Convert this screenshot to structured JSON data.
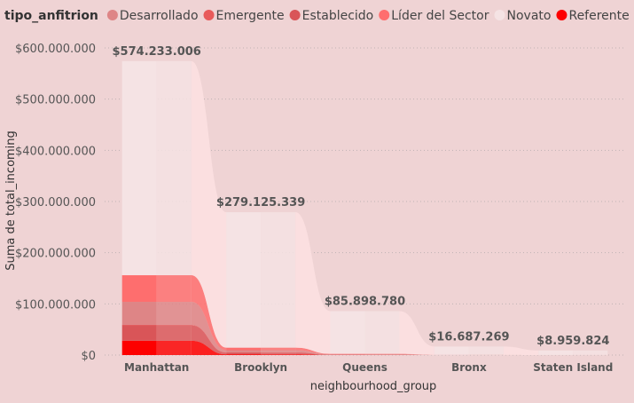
{
  "chart_data": {
    "type": "bar",
    "legend_title": "tipo_anfitrion",
    "legend_position": "top-left",
    "xlabel": "neighbourhood_group",
    "ylabel": "Suma de total_incoming",
    "ylim": [
      0,
      600000000
    ],
    "yticks": [
      0,
      100000000,
      200000000,
      300000000,
      400000000,
      500000000,
      600000000
    ],
    "ytick_labels": [
      "$0",
      "$100.000.000",
      "$200.000.000",
      "$300.000.000",
      "$400.000.000",
      "$500.000.000",
      "$600.000.000"
    ],
    "grid": true,
    "categories": [
      "Manhattan",
      "Brooklyn",
      "Queens",
      "Bronx",
      "Staten Island"
    ],
    "totals": [
      574233006,
      279125339,
      85898780,
      16687269,
      8959824
    ],
    "total_labels": [
      "$574.233.006",
      "$279.125.339",
      "$85.898.780",
      "$16.687.269",
      "$8.959.824"
    ],
    "series": [
      {
        "name": "Referente",
        "color": "#fd0000",
        "values": [
          28000000,
          1500000,
          200000,
          30000,
          10000
        ]
      },
      {
        "name": "Establecido",
        "color": "#d95558",
        "values": [
          30000000,
          3500000,
          400000,
          50000,
          15000
        ]
      },
      {
        "name": "Emergente",
        "color": "#e85a5a",
        "values": [
          1000000,
          500000,
          100000,
          10000,
          5000
        ]
      },
      {
        "name": "Desarrollado",
        "color": "#de8586",
        "values": [
          45000000,
          4000000,
          800000,
          100000,
          30000
        ]
      },
      {
        "name": "Líder del Sector",
        "color": "#fe6e6e",
        "values": [
          52000000,
          5000000,
          900000,
          100000,
          40000
        ]
      },
      {
        "name": "Novato",
        "color": "#f5e3e4",
        "values": [
          418233006,
          264625339,
          83498780,
          16397269,
          8859824
        ]
      }
    ],
    "legend_order": [
      "Desarrollado",
      "Emergente",
      "Establecido",
      "Líder del Sector",
      "Novato",
      "Referente"
    ]
  }
}
